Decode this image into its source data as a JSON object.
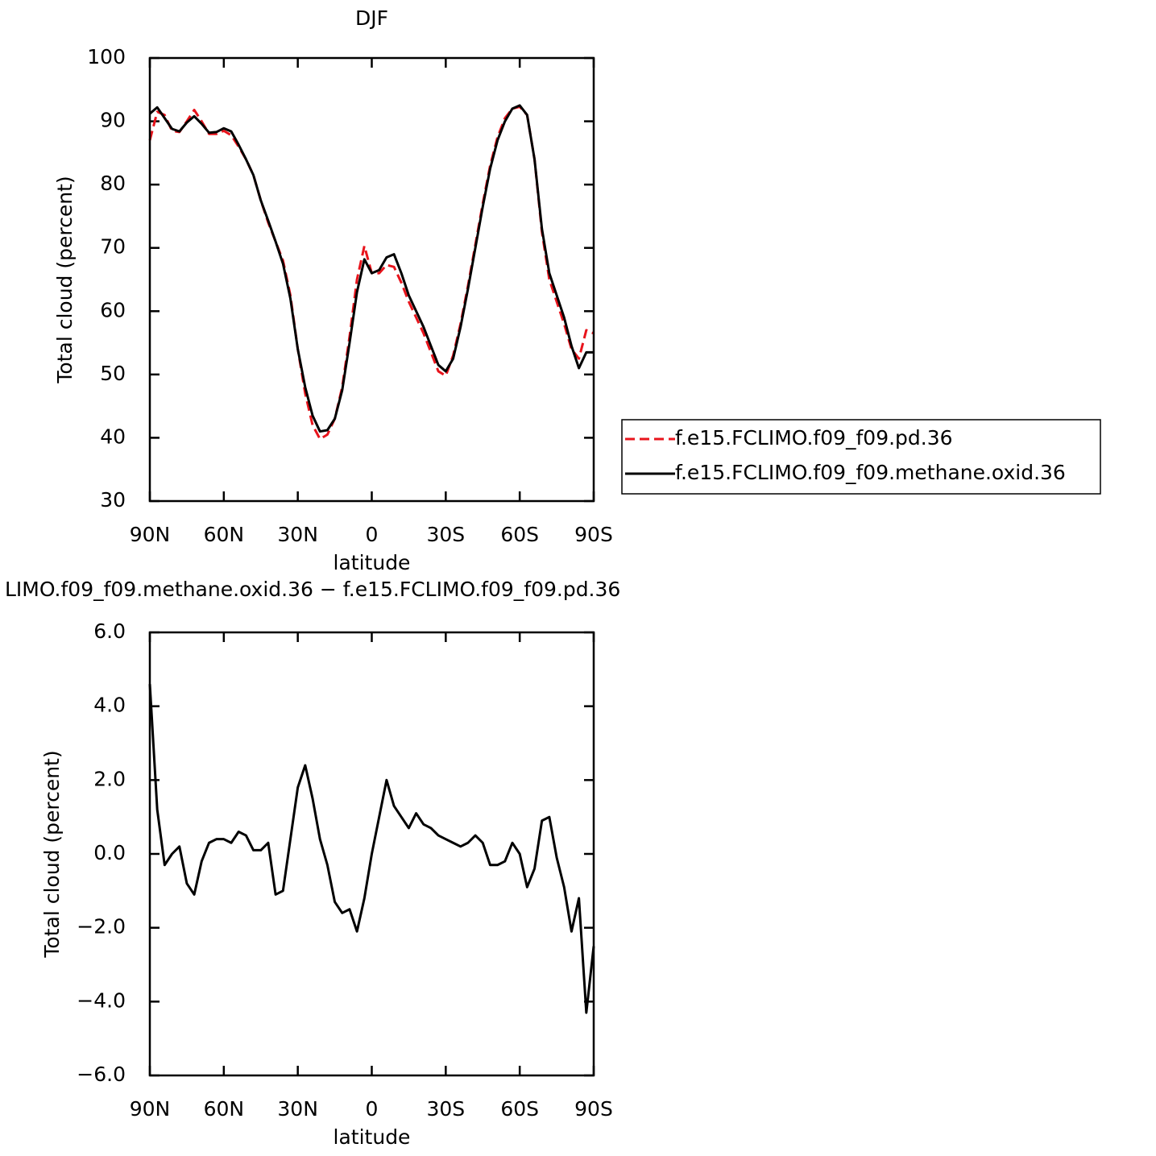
{
  "chart_data": [
    {
      "type": "line",
      "title": "DJF",
      "x_label": "latitude",
      "y_label": "Total cloud (percent)",
      "x": [
        90,
        87,
        84,
        81,
        78,
        75,
        72,
        69,
        66,
        63,
        60,
        57,
        54,
        51,
        48,
        45,
        42,
        39,
        36,
        33,
        30,
        27,
        24,
        21,
        18,
        15,
        12,
        9,
        6,
        3,
        0,
        -3,
        -6,
        -9,
        -12,
        -15,
        -18,
        -21,
        -24,
        -27,
        -30,
        -33,
        -36,
        -39,
        -42,
        -45,
        -48,
        -51,
        -54,
        -57,
        -60,
        -63,
        -66,
        -69,
        -72,
        -75,
        -78,
        -81,
        -84,
        -87,
        -90
      ],
      "xlim": [
        90,
        -90
      ],
      "xticks": [
        {
          "value": 90,
          "label": "90N"
        },
        {
          "value": 60,
          "label": "60N"
        },
        {
          "value": 30,
          "label": "30N"
        },
        0,
        {
          "value": -30,
          "label": "30S"
        },
        {
          "value": -60,
          "label": "60S"
        },
        {
          "value": -90,
          "label": "90S"
        }
      ],
      "ylim": [
        30,
        100
      ],
      "yticks": [
        30,
        40,
        50,
        60,
        70,
        80,
        90,
        100
      ],
      "legend": "outside right",
      "series": [
        {
          "name": "f.e15.FCLIMO.f09_f09.pd.36",
          "color": "#e8141c",
          "line_style": "dashed",
          "values": [
            87,
            91.5,
            91,
            88.5,
            88.3,
            90,
            91.8,
            90,
            88,
            88,
            88.5,
            87.8,
            86,
            84,
            81.5,
            77.5,
            74,
            71,
            68,
            62.5,
            54,
            47,
            42,
            39.8,
            40.5,
            43,
            48,
            56,
            65,
            70.3,
            66,
            66,
            67.3,
            67,
            64.5,
            61.5,
            59,
            56.5,
            53.5,
            50.5,
            49.8,
            53,
            58,
            64,
            70.5,
            77,
            83,
            87.5,
            90.5,
            92,
            92.3,
            91,
            84,
            72.5,
            65,
            61.5,
            58,
            54,
            52.5,
            57,
            56.5
          ]
        },
        {
          "name": "f.e15.FCLIMO.f09_f09.methane.oxid.36",
          "color": "#000000",
          "line_style": "solid",
          "values": [
            91.2,
            92.2,
            90.5,
            88.8,
            88.4,
            89.8,
            90.8,
            89.6,
            88.2,
            88.3,
            88.9,
            88.4,
            86.3,
            84,
            81.5,
            77.5,
            74.3,
            71,
            67.5,
            62,
            54,
            48,
            43.5,
            41,
            41.2,
            43,
            47.5,
            55,
            63,
            68.2,
            66,
            66.5,
            68.5,
            69,
            66,
            62.5,
            60,
            57.5,
            54.5,
            51.5,
            50.5,
            52.5,
            57.5,
            63.5,
            70,
            76.5,
            82.5,
            87,
            90,
            92,
            92.5,
            91,
            84,
            73,
            66,
            62.5,
            59,
            54.5,
            51,
            53.5,
            53.5
          ]
        }
      ]
    },
    {
      "type": "line",
      "title": "LIMO.f09_f09.methane.oxid.36 − f.e15.FCLIMO.f09_f09.pd.36",
      "x_label": "latitude",
      "y_label": "Total cloud (percent)",
      "x": [
        90,
        87,
        84,
        81,
        78,
        75,
        72,
        69,
        66,
        63,
        60,
        57,
        54,
        51,
        48,
        45,
        42,
        39,
        36,
        33,
        30,
        27,
        24,
        21,
        18,
        15,
        12,
        9,
        6,
        3,
        0,
        -3,
        -6,
        -9,
        -12,
        -15,
        -18,
        -21,
        -24,
        -27,
        -30,
        -33,
        -36,
        -39,
        -42,
        -45,
        -48,
        -51,
        -54,
        -57,
        -60,
        -63,
        -66,
        -69,
        -72,
        -75,
        -78,
        -81,
        -84,
        -87,
        -90
      ],
      "xlim": [
        90,
        -90
      ],
      "xticks": [
        {
          "value": 90,
          "label": "90N"
        },
        {
          "value": 60,
          "label": "60N"
        },
        {
          "value": 30,
          "label": "30N"
        },
        0,
        {
          "value": -30,
          "label": "30S"
        },
        {
          "value": -60,
          "label": "60S"
        },
        {
          "value": -90,
          "label": "90S"
        }
      ],
      "ylim": [
        -6,
        6
      ],
      "yticks": [
        {
          "value": -6,
          "label": "−6.0"
        },
        {
          "value": -4,
          "label": "−4.0"
        },
        {
          "value": -2,
          "label": "−2.0"
        },
        {
          "value": 0,
          "label": "0.0"
        },
        {
          "value": 2,
          "label": "2.0"
        },
        {
          "value": 4,
          "label": "4.0"
        },
        {
          "value": 6,
          "label": "6.0"
        }
      ],
      "series": [
        {
          "color": "#000000",
          "line_style": "solid",
          "values": [
            4.6,
            1.2,
            -0.3,
            0,
            0.2,
            -0.8,
            -1.1,
            -0.2,
            0.3,
            0.4,
            0.4,
            0.3,
            0.6,
            0.5,
            0.1,
            0.1,
            0.3,
            -1.1,
            -1,
            0.4,
            1.8,
            2.4,
            1.5,
            0.4,
            -0.3,
            -1.3,
            -1.6,
            -1.5,
            -2.1,
            -1.2,
            0,
            1,
            2,
            1.3,
            1,
            0.7,
            1.1,
            0.8,
            0.7,
            0.5,
            0.4,
            0.3,
            0.2,
            0.3,
            0.5,
            0.3,
            -0.3,
            -0.3,
            -0.2,
            0.3,
            0,
            -0.9,
            -0.4,
            0.9,
            1,
            -0.1,
            -0.9,
            -2.1,
            -1.2,
            -4.3,
            -2.5
          ]
        }
      ]
    }
  ]
}
